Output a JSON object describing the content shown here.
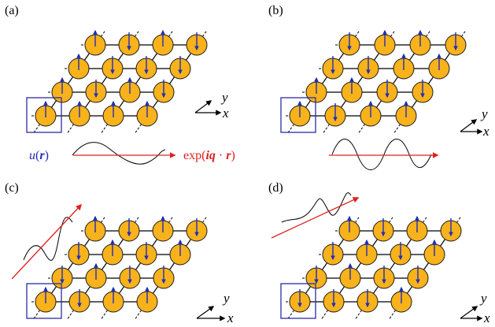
{
  "colors": {
    "atom_fill": "#f7b21c",
    "atom_stroke": "#1a1a1a",
    "spin_arrow": "#1f2fb5",
    "unit_cell_box": "#2b2ba8",
    "wave_vector": "#e02020",
    "bond": "#000000"
  },
  "panels": [
    {
      "id": "a",
      "label": "(a)",
      "spins": [
        [
          "up",
          "up",
          "up",
          "up"
        ],
        [
          "up",
          "down",
          "up",
          "down"
        ],
        [
          "up",
          "down",
          "down",
          "down"
        ],
        [
          "up",
          "down",
          "up",
          "down"
        ]
      ],
      "formula_left": "u(r)",
      "formula_right": "exp(iq · r)",
      "axis_x": "x",
      "axis_y": "y"
    },
    {
      "id": "b",
      "label": "(b)",
      "spins": [
        [
          "up",
          "down",
          "up",
          "up"
        ],
        [
          "up",
          "up",
          "down",
          "down"
        ],
        [
          "down",
          "down",
          "up",
          "up"
        ],
        [
          "down",
          "up",
          "up",
          "down"
        ]
      ],
      "axis_x": "x",
      "axis_y": "y"
    },
    {
      "id": "c",
      "label": "(c)",
      "spins": [
        [
          "up",
          "down",
          "up",
          "up"
        ],
        [
          "down",
          "up",
          "down",
          "down"
        ],
        [
          "down",
          "up",
          "down",
          "up"
        ],
        [
          "up",
          "down",
          "up",
          "down"
        ]
      ],
      "axis_x": "x",
      "axis_y": "y"
    },
    {
      "id": "d",
      "label": "(d)",
      "spins": [
        [
          "down",
          "down",
          "down",
          "up"
        ],
        [
          "down",
          "up",
          "down",
          "down"
        ],
        [
          "down",
          "up",
          "down",
          "up"
        ],
        [
          "up",
          "down",
          "up",
          "down"
        ]
      ],
      "axis_x": "x",
      "axis_y": "y"
    }
  ]
}
